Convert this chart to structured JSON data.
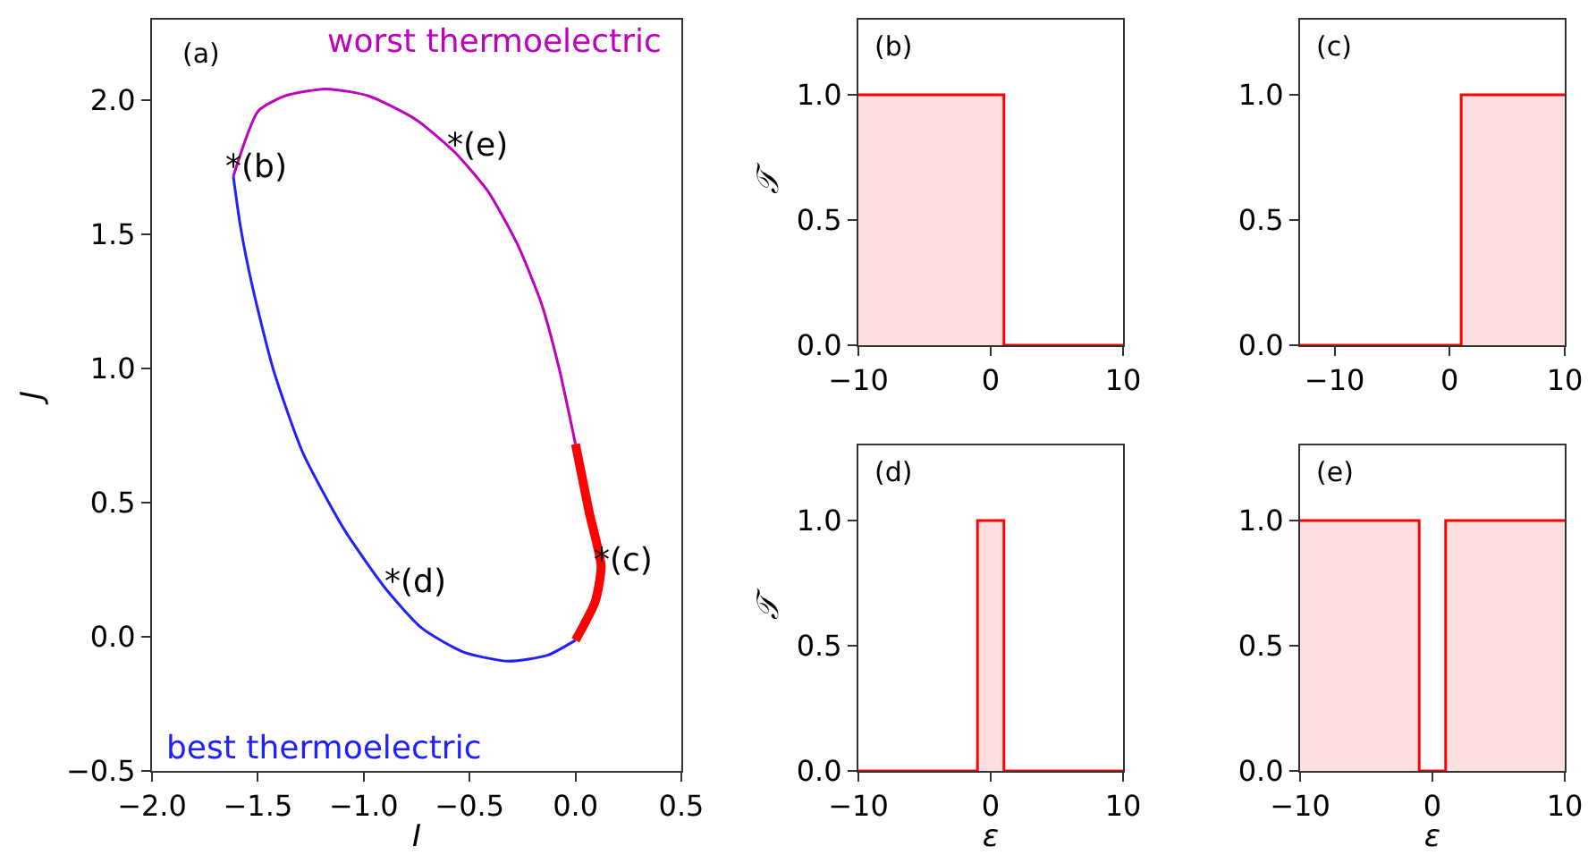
{
  "chart_data": [
    {
      "type": "line",
      "title": "(a)",
      "xlabel": "I",
      "ylabel": "J",
      "xlim": [
        -2,
        0.5
      ],
      "ylim": [
        -0.5,
        2.3
      ],
      "xticks": [
        {
          "value": -2,
          "label": "−2.0"
        },
        {
          "value": -1.5,
          "label": "−1.5"
        },
        {
          "value": -1,
          "label": "−1.0"
        },
        {
          "value": -0.5,
          "label": "−0.5"
        },
        {
          "value": 0,
          "label": "0.0"
        },
        {
          "value": 0.5,
          "label": "0.5"
        }
      ],
      "yticks": [
        {
          "value": -0.5,
          "label": "−0.5"
        },
        {
          "value": 0,
          "label": "0.0"
        },
        {
          "value": 0.5,
          "label": "0.5"
        },
        {
          "value": 1,
          "label": "1.0"
        },
        {
          "value": 1.5,
          "label": "1.5"
        },
        {
          "value": 2,
          "label": "2.0"
        }
      ],
      "series": [
        {
          "name": "worst thermoelectric",
          "color": "#bf00bf",
          "x": [
            -1.616,
            -1.498,
            -1.371,
            -1.18,
            -0.977,
            -0.752,
            -0.569,
            -0.414,
            -0.273,
            -0.16,
            -0.076,
            0
          ],
          "values": [
            1.716,
            1.96,
            2.016,
            2.042,
            2.016,
            1.927,
            1.805,
            1.661,
            1.461,
            1.24,
            0.996,
            0.718
          ]
        },
        {
          "name": "best thermoelectric",
          "color": "#2020ff",
          "x": [
            0,
            -0.132,
            -0.315,
            -0.526,
            -0.724,
            -0.892,
            -1.09,
            -1.287,
            -1.427,
            -1.526,
            -1.582,
            -1.616
          ],
          "values": [
            -0.013,
            -0.069,
            -0.091,
            -0.058,
            0.031,
            0.175,
            0.397,
            0.685,
            0.996,
            1.306,
            1.528,
            1.716
          ]
        },
        {
          "color": "#ff0000",
          "x": [
            0,
            0.065,
            0.121,
            0.093,
            0
          ],
          "values": [
            0.718,
            0.463,
            0.264,
            0.131,
            -0.013
          ]
        }
      ],
      "annotations": [
        {
          "text": "*(b)",
          "x": -1.616,
          "y": 1.716
        },
        {
          "text": "*(e)",
          "x": -0.57,
          "y": 1.8
        },
        {
          "text": "*(d)",
          "x": -0.87,
          "y": 0.17
        },
        {
          "text": "*(c)",
          "x": 0.121,
          "y": 0.25
        }
      ]
    },
    {
      "type": "area",
      "title": "(b)",
      "ylabel": "𝒯",
      "xlim": [
        -10,
        10
      ],
      "ylim": [
        0,
        1.3
      ],
      "xticks": [
        {
          "value": -10,
          "label": "−10"
        },
        {
          "value": 0,
          "label": "0"
        },
        {
          "value": 10,
          "label": "10"
        }
      ],
      "yticks": [
        {
          "value": 0,
          "label": "0.0"
        },
        {
          "value": 0.5,
          "label": "0.5"
        },
        {
          "value": 1,
          "label": "1.0"
        }
      ],
      "series": [
        {
          "color": "#ff0000",
          "x": [
            -10,
            1,
            1,
            10
          ],
          "values": [
            1,
            1,
            0,
            0
          ]
        }
      ]
    },
    {
      "type": "area",
      "title": "(c)",
      "xlim": [
        -13,
        10
      ],
      "ylim": [
        0,
        1.3
      ],
      "xticks": [
        {
          "value": -10,
          "label": "−10"
        },
        {
          "value": 0,
          "label": "0"
        },
        {
          "value": 10,
          "label": "10"
        }
      ],
      "yticks": [
        {
          "value": 0,
          "label": "0.0"
        },
        {
          "value": 0.5,
          "label": "0.5"
        },
        {
          "value": 1,
          "label": "1.0"
        }
      ],
      "series": [
        {
          "color": "#ff0000",
          "x": [
            -13,
            1,
            1,
            10
          ],
          "values": [
            0,
            0,
            1,
            1
          ]
        }
      ]
    },
    {
      "type": "area",
      "title": "(d)",
      "xlabel": "ε",
      "ylabel": "𝒯",
      "xlim": [
        -10,
        10
      ],
      "ylim": [
        0,
        1.3
      ],
      "xticks": [
        {
          "value": -10,
          "label": "−10"
        },
        {
          "value": 0,
          "label": "0"
        },
        {
          "value": 10,
          "label": "10"
        }
      ],
      "yticks": [
        {
          "value": 0,
          "label": "0.0"
        },
        {
          "value": 0.5,
          "label": "0.5"
        },
        {
          "value": 1,
          "label": "1.0"
        }
      ],
      "series": [
        {
          "color": "#ff0000",
          "x": [
            -10,
            -1,
            -1,
            1,
            1,
            10
          ],
          "values": [
            0,
            0,
            1,
            1,
            0,
            0
          ]
        }
      ]
    },
    {
      "type": "area",
      "title": "(e)",
      "xlabel": "ε",
      "xlim": [
        -10,
        10
      ],
      "ylim": [
        0,
        1.3
      ],
      "xticks": [
        {
          "value": -10,
          "label": "−10"
        },
        {
          "value": 0,
          "label": "0"
        },
        {
          "value": 10,
          "label": "10"
        }
      ],
      "yticks": [
        {
          "value": 0,
          "label": "0.0"
        },
        {
          "value": 0.5,
          "label": "0.5"
        },
        {
          "value": 1,
          "label": "1.0"
        }
      ],
      "series": [
        {
          "color": "#ff0000",
          "x": [
            -10,
            -1,
            -1,
            1,
            1,
            10
          ],
          "values": [
            1,
            1,
            0,
            0,
            1,
            1
          ]
        }
      ]
    }
  ]
}
